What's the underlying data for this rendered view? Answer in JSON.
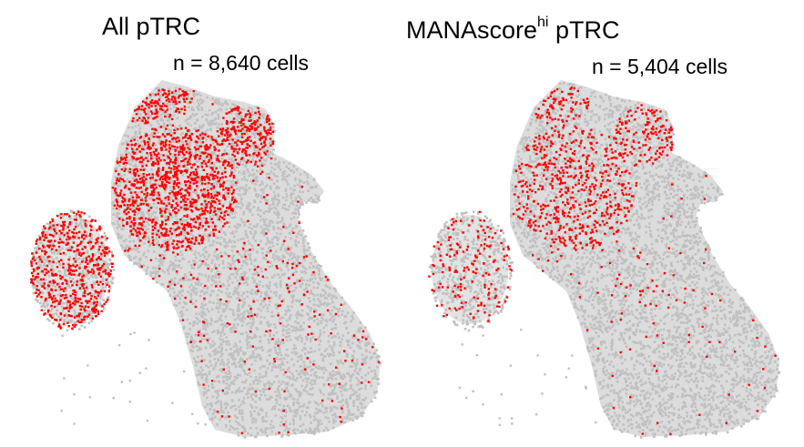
{
  "chart_data": [
    {
      "type": "scatter",
      "title_main": "All pTRC",
      "title_sup": "",
      "title_suffix": "",
      "annotation": "n = 8,640 cells",
      "series": [
        {
          "role": "background",
          "color": "#c0c0c0"
        },
        {
          "role": "highlighted",
          "color": "#ff0000"
        }
      ],
      "highlight_density": "high"
    },
    {
      "type": "scatter",
      "title_main": "MANAscore",
      "title_sup": "hi",
      "title_suffix": " pTRC",
      "annotation": "n = 5,404 cells",
      "series": [
        {
          "role": "background",
          "color": "#c0c0c0"
        },
        {
          "role": "highlighted",
          "color": "#ff0000"
        }
      ],
      "highlight_density": "medium"
    }
  ]
}
